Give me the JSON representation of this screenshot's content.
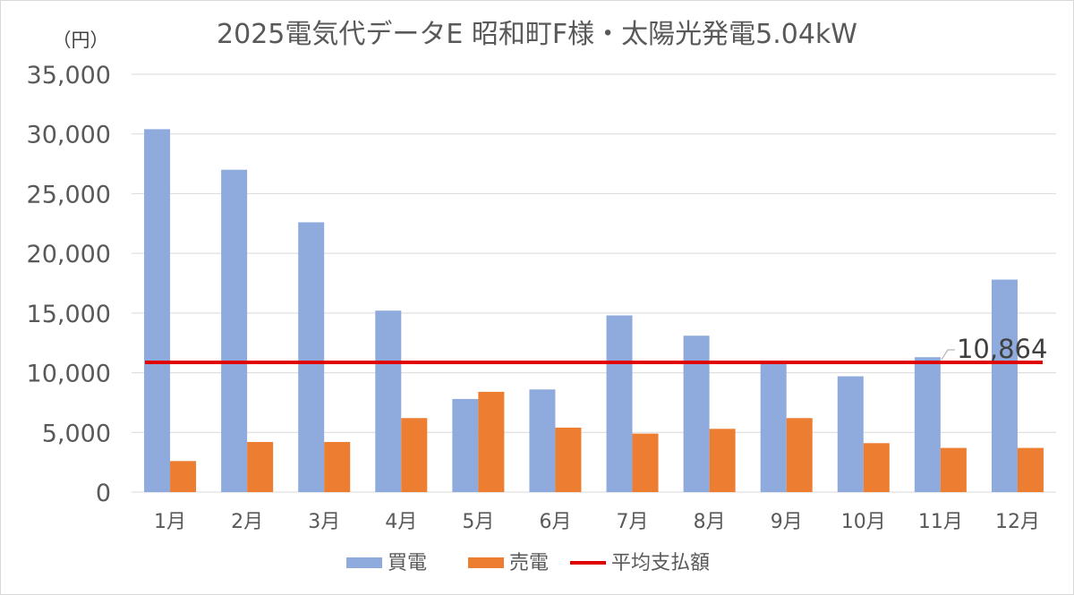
{
  "colors": {
    "buy": "#8faadc",
    "sell": "#ed7d31",
    "average": "#e00000",
    "grid": "#d9d9d9",
    "text": "#595959"
  },
  "chart_data": {
    "type": "bar",
    "title": "2025電気代データE 昭和町F様・太陽光発電5.04kW",
    "unit_label": "（円）",
    "categories": [
      "1月",
      "2月",
      "3月",
      "4月",
      "5月",
      "6月",
      "7月",
      "8月",
      "9月",
      "10月",
      "11月",
      "12月"
    ],
    "series": [
      {
        "name": "買電",
        "values": [
          30400,
          27000,
          22600,
          15200,
          7800,
          8600,
          14800,
          13100,
          10900,
          9700,
          11300,
          17800
        ]
      },
      {
        "name": "売電",
        "values": [
          2600,
          4200,
          4200,
          6200,
          8400,
          5400,
          4900,
          5300,
          6200,
          4100,
          3700,
          3700
        ]
      }
    ],
    "average_line": {
      "name": "平均支払額",
      "value": 10864,
      "label": "10,864"
    },
    "ylim": [
      0,
      35000
    ],
    "yticks": [
      "0",
      "5,000",
      "10,000",
      "15,000",
      "20,000",
      "25,000",
      "30,000",
      "35,000"
    ],
    "grid": true,
    "legend_position": "bottom"
  }
}
